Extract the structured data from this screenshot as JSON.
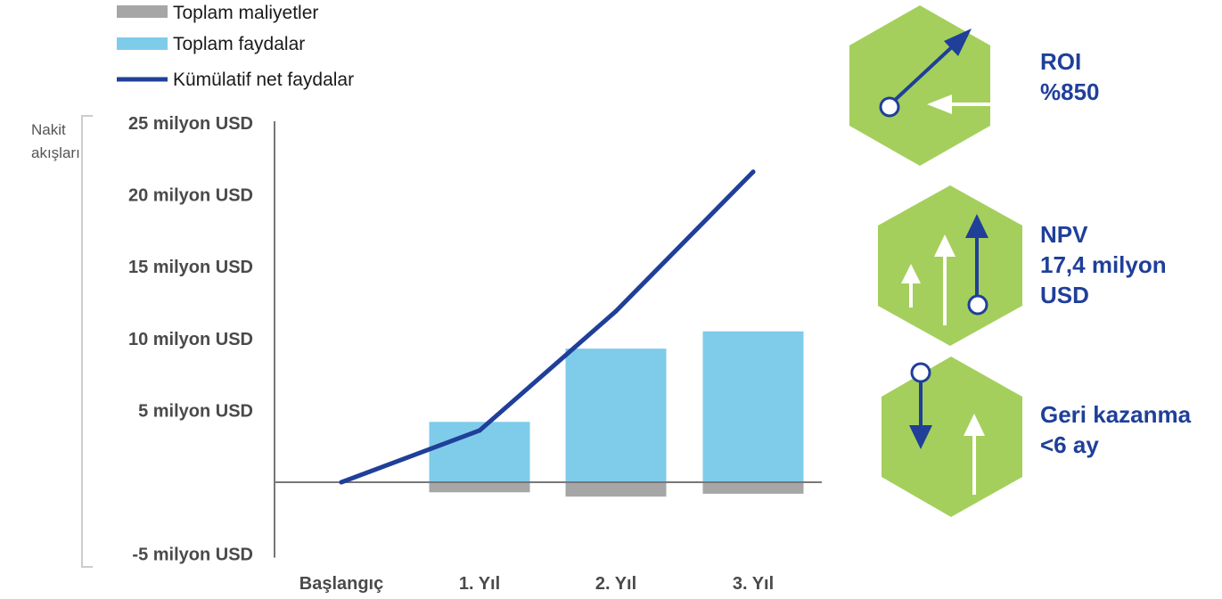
{
  "chart_data": {
    "type": "bar",
    "categories": [
      "Başlangıç",
      "1. Yıl",
      "2. Yıl",
      "3. Yıl"
    ],
    "ylabel_lines": [
      "Nakit",
      "akışları"
    ],
    "ylim": [
      -5,
      25
    ],
    "yticks": [
      {
        "value": 25,
        "label": "25 milyon USD"
      },
      {
        "value": 20,
        "label": "20 milyon USD"
      },
      {
        "value": 15,
        "label": "15 milyon USD"
      },
      {
        "value": 10,
        "label": "10 milyon USD"
      },
      {
        "value": 5,
        "label": "5 milyon USD"
      },
      {
        "value": -5,
        "label": "-5 milyon USD"
      }
    ],
    "legend_position": "top-left",
    "series": [
      {
        "name": "Toplam maliyetler",
        "kind": "bar",
        "color": "#a6a6a6",
        "values": [
          0,
          -0.7,
          -1.0,
          -0.8
        ]
      },
      {
        "name": "Toplam faydalar",
        "kind": "bar",
        "color": "#7fcbea",
        "values": [
          0,
          4.2,
          9.3,
          10.5
        ]
      },
      {
        "name": "Kümülatif net faydalar",
        "kind": "line",
        "color": "#1f3f99",
        "values": [
          0,
          3.6,
          11.9,
          21.6
        ]
      }
    ]
  },
  "kpis": [
    {
      "icon": "roi-arrow-icon",
      "lines": [
        "ROI",
        "%850"
      ]
    },
    {
      "icon": "npv-arrows-icon",
      "lines": [
        "NPV",
        "17,4 milyon",
        "USD"
      ]
    },
    {
      "icon": "payback-arrows-icon",
      "lines": [
        "Geri kazanma",
        "<6 ay"
      ]
    }
  ],
  "colors": {
    "hexagon": "#a4cf5c",
    "accent": "#1f3f99",
    "axis": "#777777"
  }
}
